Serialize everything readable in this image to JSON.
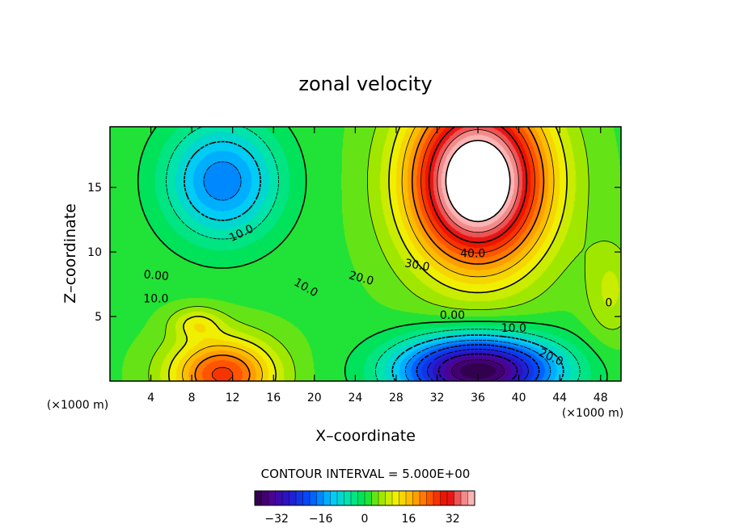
{
  "chart_data": {
    "type": "heatmap",
    "subtype": "filled contour",
    "title": "zonal velocity",
    "xlabel": "X–coordinate",
    "ylabel": "Z–coordinate",
    "x_unit": "(×1000 m)",
    "y_unit": "(×1000 m)",
    "xlim": [
      0,
      50
    ],
    "ylim": [
      0,
      19.7
    ],
    "x_ticks": [
      4,
      8,
      12,
      16,
      20,
      24,
      28,
      32,
      36,
      40,
      44,
      48
    ],
    "y_ticks": [
      5,
      10,
      15
    ],
    "contour_interval_text": "CONTOUR INTERVAL = 5.000E+00",
    "contour_labels": [
      "10.0",
      "0.00",
      "10.0",
      "10.0",
      "20.0",
      "30.0",
      "40.0",
      "0.00",
      "10.0",
      "20.0",
      "0"
    ],
    "colorbar": {
      "range": [
        -40,
        40
      ],
      "ticks": [
        -32,
        -16,
        0,
        16,
        32
      ],
      "colormap": "rainbow"
    },
    "field_features": [
      {
        "type": "min",
        "x": 11,
        "z": 15.5,
        "value": -17
      },
      {
        "type": "min",
        "x": 36,
        "z": 1.0,
        "value": -38
      },
      {
        "type": "max",
        "x": 36,
        "z": 15.5,
        "value": 45
      },
      {
        "type": "max",
        "x": 11,
        "z": 0.8,
        "value": 24
      },
      {
        "type": "max",
        "x": 9,
        "z": 4.5,
        "value": 13
      }
    ],
    "grid": false
  }
}
